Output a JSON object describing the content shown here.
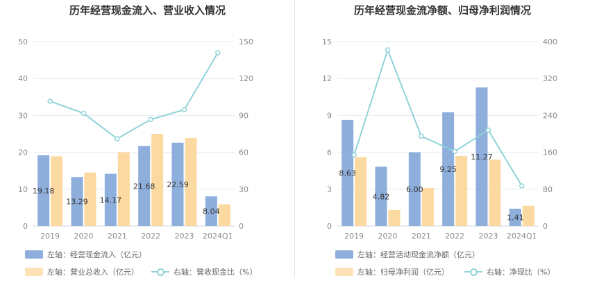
{
  "colors": {
    "bar1": "#8eaedc",
    "bar2": "#fcd9a0",
    "line": "#8fd3d9",
    "grid": "#e6e9f2",
    "axis_text": "#8a8a8a"
  },
  "chart_data": [
    {
      "type": "bar",
      "title": "历年经营现金流入、营业收入情况",
      "categories": [
        "2019",
        "2020",
        "2021",
        "2022",
        "2023",
        "2024Q1"
      ],
      "series": [
        {
          "name": "左轴：经营现金流入（亿元）",
          "axis": "left",
          "kind": "bar",
          "values": [
            19.18,
            13.29,
            14.17,
            21.68,
            22.59,
            8.04
          ],
          "labels": [
            "19.18",
            "13.29",
            "14.17",
            "21.68",
            "22.59",
            "8.04"
          ]
        },
        {
          "name": "左轴：营业总收入（亿元）",
          "axis": "left",
          "kind": "bar",
          "values": [
            18.9,
            14.5,
            20.0,
            25.0,
            23.9,
            5.9
          ]
        },
        {
          "name": "右轴：营收现金比（%）",
          "axis": "right",
          "kind": "line",
          "values": [
            101.5,
            91.7,
            71.0,
            86.7,
            94.6,
            140.9
          ]
        }
      ],
      "y_left": {
        "ticks": [
          "0",
          "10",
          "20",
          "30",
          "40",
          "50"
        ],
        "ylim": [
          0,
          50
        ]
      },
      "y_right": {
        "ticks": [
          "0",
          "30",
          "60",
          "90",
          "120",
          "150"
        ],
        "ylim": [
          0,
          150
        ]
      },
      "legend": [
        "左轴：经营现金流入（亿元）",
        "左轴：营业总收入（亿元）",
        "右轴：营收现金比（%）"
      ],
      "legend_position": "bottom",
      "grid": true
    },
    {
      "type": "bar",
      "title": "历年经营现金流净额、归母净利润情况",
      "categories": [
        "2019",
        "2020",
        "2021",
        "2022",
        "2023",
        "2024Q1"
      ],
      "series": [
        {
          "name": "左轴：经营活动现金流净额（亿元）",
          "axis": "left",
          "kind": "bar",
          "values": [
            8.63,
            4.82,
            6.0,
            9.25,
            11.27,
            1.41
          ],
          "labels": [
            "8.63",
            "4.82",
            "6.00",
            "9.25",
            "11.27",
            "1.41"
          ]
        },
        {
          "name": "左轴：归母净利润（亿元）",
          "axis": "left",
          "kind": "bar",
          "values": [
            5.6,
            1.3,
            3.1,
            5.7,
            5.4,
            1.65
          ]
        },
        {
          "name": "右轴：净现比（%）",
          "axis": "right",
          "kind": "line",
          "values": [
            154.1,
            382.0,
            195.0,
            162.0,
            208.0,
            87.0
          ]
        }
      ],
      "y_left": {
        "ticks": [
          "0",
          "3",
          "6",
          "9",
          "12",
          "15"
        ],
        "ylim": [
          0,
          15
        ]
      },
      "y_right": {
        "ticks": [
          "0",
          "80",
          "160",
          "240",
          "320",
          "400"
        ],
        "ylim": [
          0,
          400
        ]
      },
      "legend": [
        "左轴：经营活动现金流净额（亿元）",
        "左轴：归母净利润（亿元）",
        "右轴：净现比（%）"
      ],
      "legend_position": "bottom",
      "grid": true
    }
  ]
}
